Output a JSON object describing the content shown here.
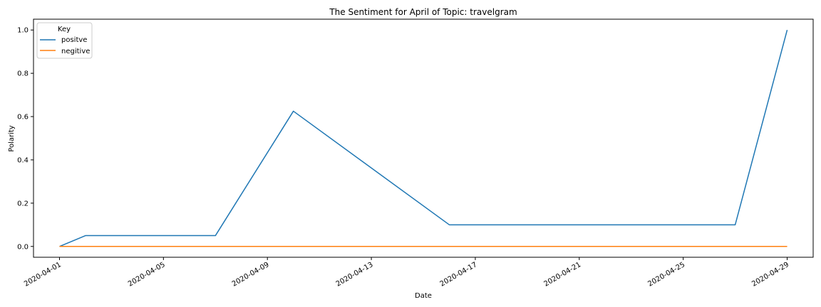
{
  "chart_data": {
    "type": "line",
    "title": "The Sentiment for April of Topic: travelgram",
    "xlabel": "Date",
    "ylabel": "Polarity",
    "x": [
      "2020-04-01",
      "2020-04-02",
      "2020-04-07",
      "2020-04-10",
      "2020-04-16",
      "2020-04-27",
      "2020-04-29"
    ],
    "series": [
      {
        "name": "positve",
        "color": "#1f77b4",
        "values": [
          0.0,
          0.05,
          0.05,
          0.625,
          0.1,
          0.1,
          1.0
        ]
      },
      {
        "name": "negitive",
        "color": "#ff7f0e",
        "values": [
          0.0,
          0.0,
          0.0,
          0.0,
          0.0,
          0.0,
          0.0
        ]
      }
    ],
    "xlim": [
      "2020-03-31",
      "2020-04-30"
    ],
    "ylim": [
      -0.05,
      1.05
    ],
    "x_ticks": [
      "2020-04-01",
      "2020-04-05",
      "2020-04-09",
      "2020-04-13",
      "2020-04-17",
      "2020-04-21",
      "2020-04-25",
      "2020-04-29"
    ],
    "y_ticks": [
      "0.0",
      "0.2",
      "0.4",
      "0.6",
      "0.8",
      "1.0"
    ],
    "legend": {
      "title": "Key",
      "placement": "top-left"
    },
    "grid": false
  }
}
